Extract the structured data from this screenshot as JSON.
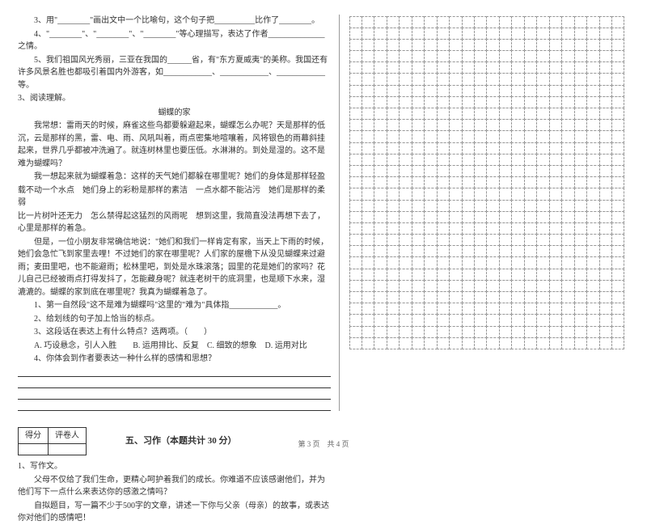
{
  "q3": "3、用\"________\"画出文中一个比喻句，这个句子把__________比作了________。",
  "q4": "4、\"________\"、\"________\"、\"________\"等心理描写，表达了作者______________之情。",
  "q5": "5、我们祖国风光秀丽，三亚在我国的______省，有\"东方夏威夷\"的美称。我国还有许多风景名胜也都吸引着国内外游客，如____________、____________、____________等。",
  "reading_num": "3、阅读理解。",
  "reading_title": "蝴蝶的家",
  "p1": "我常想：雷雨天的时候，麻雀这些鸟都要躲避起来，蝴蝶怎么办呢？天是那样的低沉，云是那样的黑，雷、电、雨、风吼叫着，雨点密集地喧嚷着，风将银色的雨幕斜挂起来，世界几乎都被冲洗遍了。就连树林里也要压低。水淋淋的。到处是湿的。这不是难为蝴蝶吗？",
  "p2_a": "我一想起来就为蝴蝶着急：这样的天气她们都躲在哪里呢？她们的身体是那样轻盈",
  "p2_b": "载不动一个水点 她们身上的彩粉是那样的素洁 一点水都不能沾污 她们是那样的柔弱",
  "p2_c": "比一片树叶还无力 怎么禁得起这猛烈的风雨呢 想到这里，我简直没法再想下去了，心里是那样的着急。",
  "p3": "但是，一位小朋友非常确信地说：\"她们和我们一样肯定有家，当天上下雨的时候，她们会急忙飞到家里去哩！不过她们的家在哪里呢？人们家的屋檐下从没见蝴蝶来过避雨；麦田里吧，也不能避雨；松林里吧，到处是水珠滚落；园里的花是她们的家吗？花儿自己已经被雨点打得发抖了，怎能藏身呢？就连老树干的底洞里，也是顺下水来，湿漉漉的。蝴蝶的家到底在哪里呢？我真为蝴蝶着急了。",
  "sq1": "1、第一自然段\"这不是难为蝴蝶吗\"这里的\"难为\"具体指____________。",
  "sq2": "2、给划线的句子加上恰当的标点。",
  "sq3": "3、这段话在表达上有什么特点？选两项。（  ）",
  "opts": "A. 巧设悬念，引人入胜  B. 运用排比、反复 C. 细致的想象 D. 运用对比",
  "sq4": "4、你体会到作者要表达一种什么样的感情和思想？",
  "score_h1": "得分",
  "score_h2": "评卷人",
  "section5": "五、习作（本题共计 30 分）",
  "w1": "1、写作文。",
  "w_p1": "父母不仅给了我们生命，更精心呵护着我们的成长。你难道不应该感谢他们，并为他们写下一点什么来表达你的感激之情吗？",
  "w_p2": "自拟题目，写一篇不少于500字的文章，讲述一下你与父亲（母亲）的故事，或表达你对他们的感情吧！",
  "footer": "第 3 页 共 4 页",
  "grid_rows": 29,
  "grid_cols": 22
}
